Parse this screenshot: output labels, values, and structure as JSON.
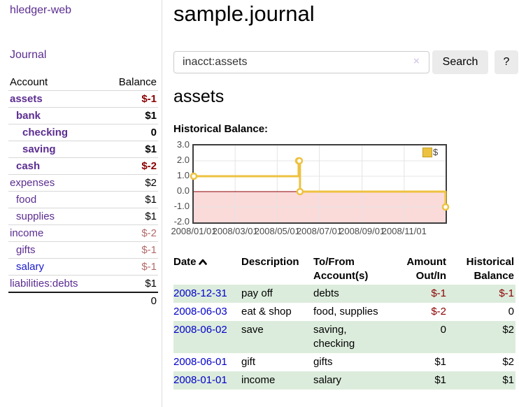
{
  "sidebar": {
    "brand": "hledger-web",
    "nav_journal": "Journal",
    "accounts_table": {
      "headers": {
        "account": "Account",
        "balance": "Balance"
      },
      "rows": [
        {
          "name": "assets",
          "indent": 0,
          "bold": true,
          "balance": "$-1",
          "neg": "strong"
        },
        {
          "name": "bank",
          "indent": 1,
          "bold": true,
          "balance": "$1"
        },
        {
          "name": "checking",
          "indent": 2,
          "bold": true,
          "balance": "0"
        },
        {
          "name": "saving",
          "indent": 2,
          "bold": true,
          "balance": "$1"
        },
        {
          "name": "cash",
          "indent": 1,
          "bold": true,
          "balance": "$-2",
          "neg": "strong"
        },
        {
          "name": "expenses",
          "indent": 0,
          "bold": false,
          "balance": "$2"
        },
        {
          "name": "food",
          "indent": 1,
          "bold": false,
          "balance": "$1"
        },
        {
          "name": "supplies",
          "indent": 1,
          "bold": false,
          "balance": "$1"
        },
        {
          "name": "income",
          "indent": 0,
          "bold": false,
          "balance": "$-2",
          "neg": "soft"
        },
        {
          "name": "gifts",
          "indent": 1,
          "bold": false,
          "balance": "$-1",
          "neg": "soft"
        },
        {
          "name": "salary",
          "indent": 1,
          "bold": false,
          "balance": "$-1",
          "neg": "soft",
          "unvisited": true
        },
        {
          "name": "liabilities:debts",
          "indent": 0,
          "bold": false,
          "balance": "$1"
        }
      ],
      "total": "0"
    }
  },
  "header": {
    "title": "sample.journal"
  },
  "search": {
    "value": "inacct:assets",
    "clear_icon": "×",
    "button_label": "Search",
    "help_label": "?"
  },
  "account_page": {
    "heading": "assets",
    "chart_title": "Historical Balance:"
  },
  "chart_data": {
    "type": "line",
    "step": true,
    "title": "Historical Balance:",
    "series": [
      {
        "name": "$",
        "color": "#edc240",
        "points": [
          {
            "x": "2008-01-01",
            "y": 1
          },
          {
            "x": "2008-06-01",
            "y": 2
          },
          {
            "x": "2008-06-02",
            "y": 2
          },
          {
            "x": "2008-06-03",
            "y": 0
          },
          {
            "x": "2008-12-31",
            "y": -1
          }
        ]
      }
    ],
    "xlim": [
      "2008-01-01",
      "2008-12-31"
    ],
    "ylim": [
      -2,
      3
    ],
    "yticks": [
      "3.0",
      "2.0",
      "1.0",
      "0.0",
      "-1.0",
      "-2.0"
    ],
    "xticks": [
      "2008/01/01",
      "2008/03/01",
      "2008/05/01",
      "2008/07/01",
      "2008/09/01",
      "2008/11/01"
    ],
    "legend_position": "top-right",
    "grid": true,
    "grid_color": "#e4e4e4",
    "zero_line_color": "#8b0000",
    "negative_region_color": "#fbdada",
    "marker_fill": "#ffffff"
  },
  "register_table": {
    "headers": {
      "date": "Date",
      "description": "Description",
      "accounts": "To/From Account(s)",
      "amount": "Amount Out/In",
      "balance": "Historical Balance"
    },
    "sort": {
      "column": "date",
      "direction": "asc"
    },
    "rows": [
      {
        "date": "2008-12-31",
        "description": "pay off",
        "accounts": "debts",
        "amount": "$-1",
        "balance": "$-1"
      },
      {
        "date": "2008-06-03",
        "description": "eat & shop",
        "accounts": "food, supplies",
        "amount": "$-2",
        "balance": "0"
      },
      {
        "date": "2008-06-02",
        "description": "save",
        "accounts": "saving, checking",
        "amount": "0",
        "balance": "$2"
      },
      {
        "date": "2008-06-01",
        "description": "gift",
        "accounts": "gifts",
        "amount": "$1",
        "balance": "$2"
      },
      {
        "date": "2008-01-01",
        "description": "income",
        "accounts": "salary",
        "amount": "$1",
        "balance": "$1"
      }
    ]
  },
  "colors": {
    "accent_purple": "#5c2d91",
    "link_blue": "#0000cc",
    "negative_strong": "#8b0000",
    "negative_soft": "#b36a6a",
    "row_stripe_green": "#dcecdc",
    "chart_series_yellow": "#edc240",
    "chart_border": "#3d3d3d"
  }
}
